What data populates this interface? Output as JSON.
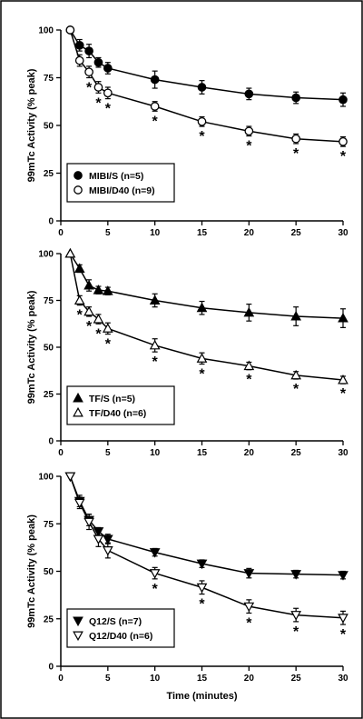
{
  "chart_data": [
    {
      "type": "line",
      "x": [
        1,
        2,
        3,
        4,
        5,
        10,
        15,
        20,
        25,
        30
      ],
      "xlim": [
        0,
        30
      ],
      "ylim": [
        0,
        100
      ],
      "xticks": [
        "0",
        "5",
        "10",
        "15",
        "20",
        "25",
        "30"
      ],
      "yticks": [
        "0",
        "25",
        "50",
        "75",
        "100"
      ],
      "ylabel": "99mTc Activity (% peak)",
      "xlabel": "",
      "legend": "bottom-left",
      "series": [
        {
          "name": "MIBI/S (n=5)",
          "marker": "circle",
          "filled": true,
          "values": [
            100,
            92,
            89,
            83,
            80,
            74,
            70,
            66.5,
            64.5,
            63.5
          ],
          "errors": [
            0,
            3,
            3.5,
            2.5,
            3,
            4.5,
            3.5,
            3,
            3,
            3.5
          ]
        },
        {
          "name": "MIBI/D40 (n=9)",
          "marker": "circle",
          "filled": false,
          "values": [
            100,
            84,
            78,
            70,
            67,
            60,
            52,
            47,
            43,
            41.5
          ],
          "errors": [
            0,
            3,
            3,
            3,
            3,
            2.5,
            2.5,
            2.5,
            2.5,
            2.5
          ]
        }
      ],
      "significance_x": [
        3,
        4,
        5,
        10,
        15,
        20,
        25,
        30
      ],
      "significance_label": "*"
    },
    {
      "type": "line",
      "x": [
        1,
        2,
        3,
        4,
        5,
        10,
        15,
        20,
        25,
        30
      ],
      "xlim": [
        0,
        30
      ],
      "ylim": [
        0,
        100
      ],
      "xticks": [
        "0",
        "5",
        "10",
        "15",
        "20",
        "25",
        "30"
      ],
      "yticks": [
        "0",
        "25",
        "50",
        "75",
        "100"
      ],
      "ylabel": "99mTc Activity (% peak)",
      "xlabel": "",
      "legend": "bottom-left",
      "series": [
        {
          "name": "TF/S (n=5)",
          "marker": "triangle-up",
          "filled": true,
          "values": [
            100,
            92,
            83,
            80.5,
            80,
            75,
            71,
            68.5,
            66.5,
            65.5
          ],
          "errors": [
            0,
            2,
            3,
            2,
            2,
            3.5,
            3.5,
            4.5,
            5,
            5
          ]
        },
        {
          "name": "TF/D40 (n=6)",
          "marker": "triangle-up",
          "filled": false,
          "values": [
            100,
            75,
            69,
            65,
            60,
            51,
            44,
            40,
            35,
            32.5
          ],
          "errors": [
            0,
            2.5,
            2.5,
            2.5,
            3,
            3.5,
            3,
            2,
            2,
            2
          ]
        }
      ],
      "significance_x": [
        2,
        3,
        4,
        5,
        10,
        15,
        20,
        25,
        30
      ],
      "significance_label": "*"
    },
    {
      "type": "line",
      "x": [
        1,
        2,
        3,
        4,
        5,
        10,
        15,
        20,
        25,
        30
      ],
      "xlim": [
        0,
        30
      ],
      "ylim": [
        0,
        100
      ],
      "xticks": [
        "0",
        "5",
        "10",
        "15",
        "20",
        "25",
        "30"
      ],
      "yticks": [
        "0",
        "25",
        "50",
        "75",
        "100"
      ],
      "ylabel": "99mTc Activity (% peak)",
      "xlabel": "Time (minutes)",
      "legend": "bottom-left",
      "series": [
        {
          "name": "Q12/S (n=7)",
          "marker": "triangle-down",
          "filled": true,
          "values": [
            100,
            87,
            77,
            71,
            67,
            60,
            54,
            49,
            48.5,
            48
          ],
          "errors": [
            0,
            3,
            3,
            2,
            2.5,
            2,
            2,
            2.5,
            2,
            2
          ]
        },
        {
          "name": "Q12/D40 (n=6)",
          "marker": "triangle-down",
          "filled": false,
          "values": [
            100,
            86,
            76,
            67,
            61,
            49,
            41.5,
            31.5,
            27,
            25.5
          ],
          "errors": [
            0,
            3,
            4,
            4,
            4,
            3,
            3.5,
            3.5,
            3.5,
            3.5
          ]
        }
      ],
      "significance_x": [
        10,
        15,
        20,
        25,
        30
      ],
      "significance_label": "*"
    }
  ]
}
